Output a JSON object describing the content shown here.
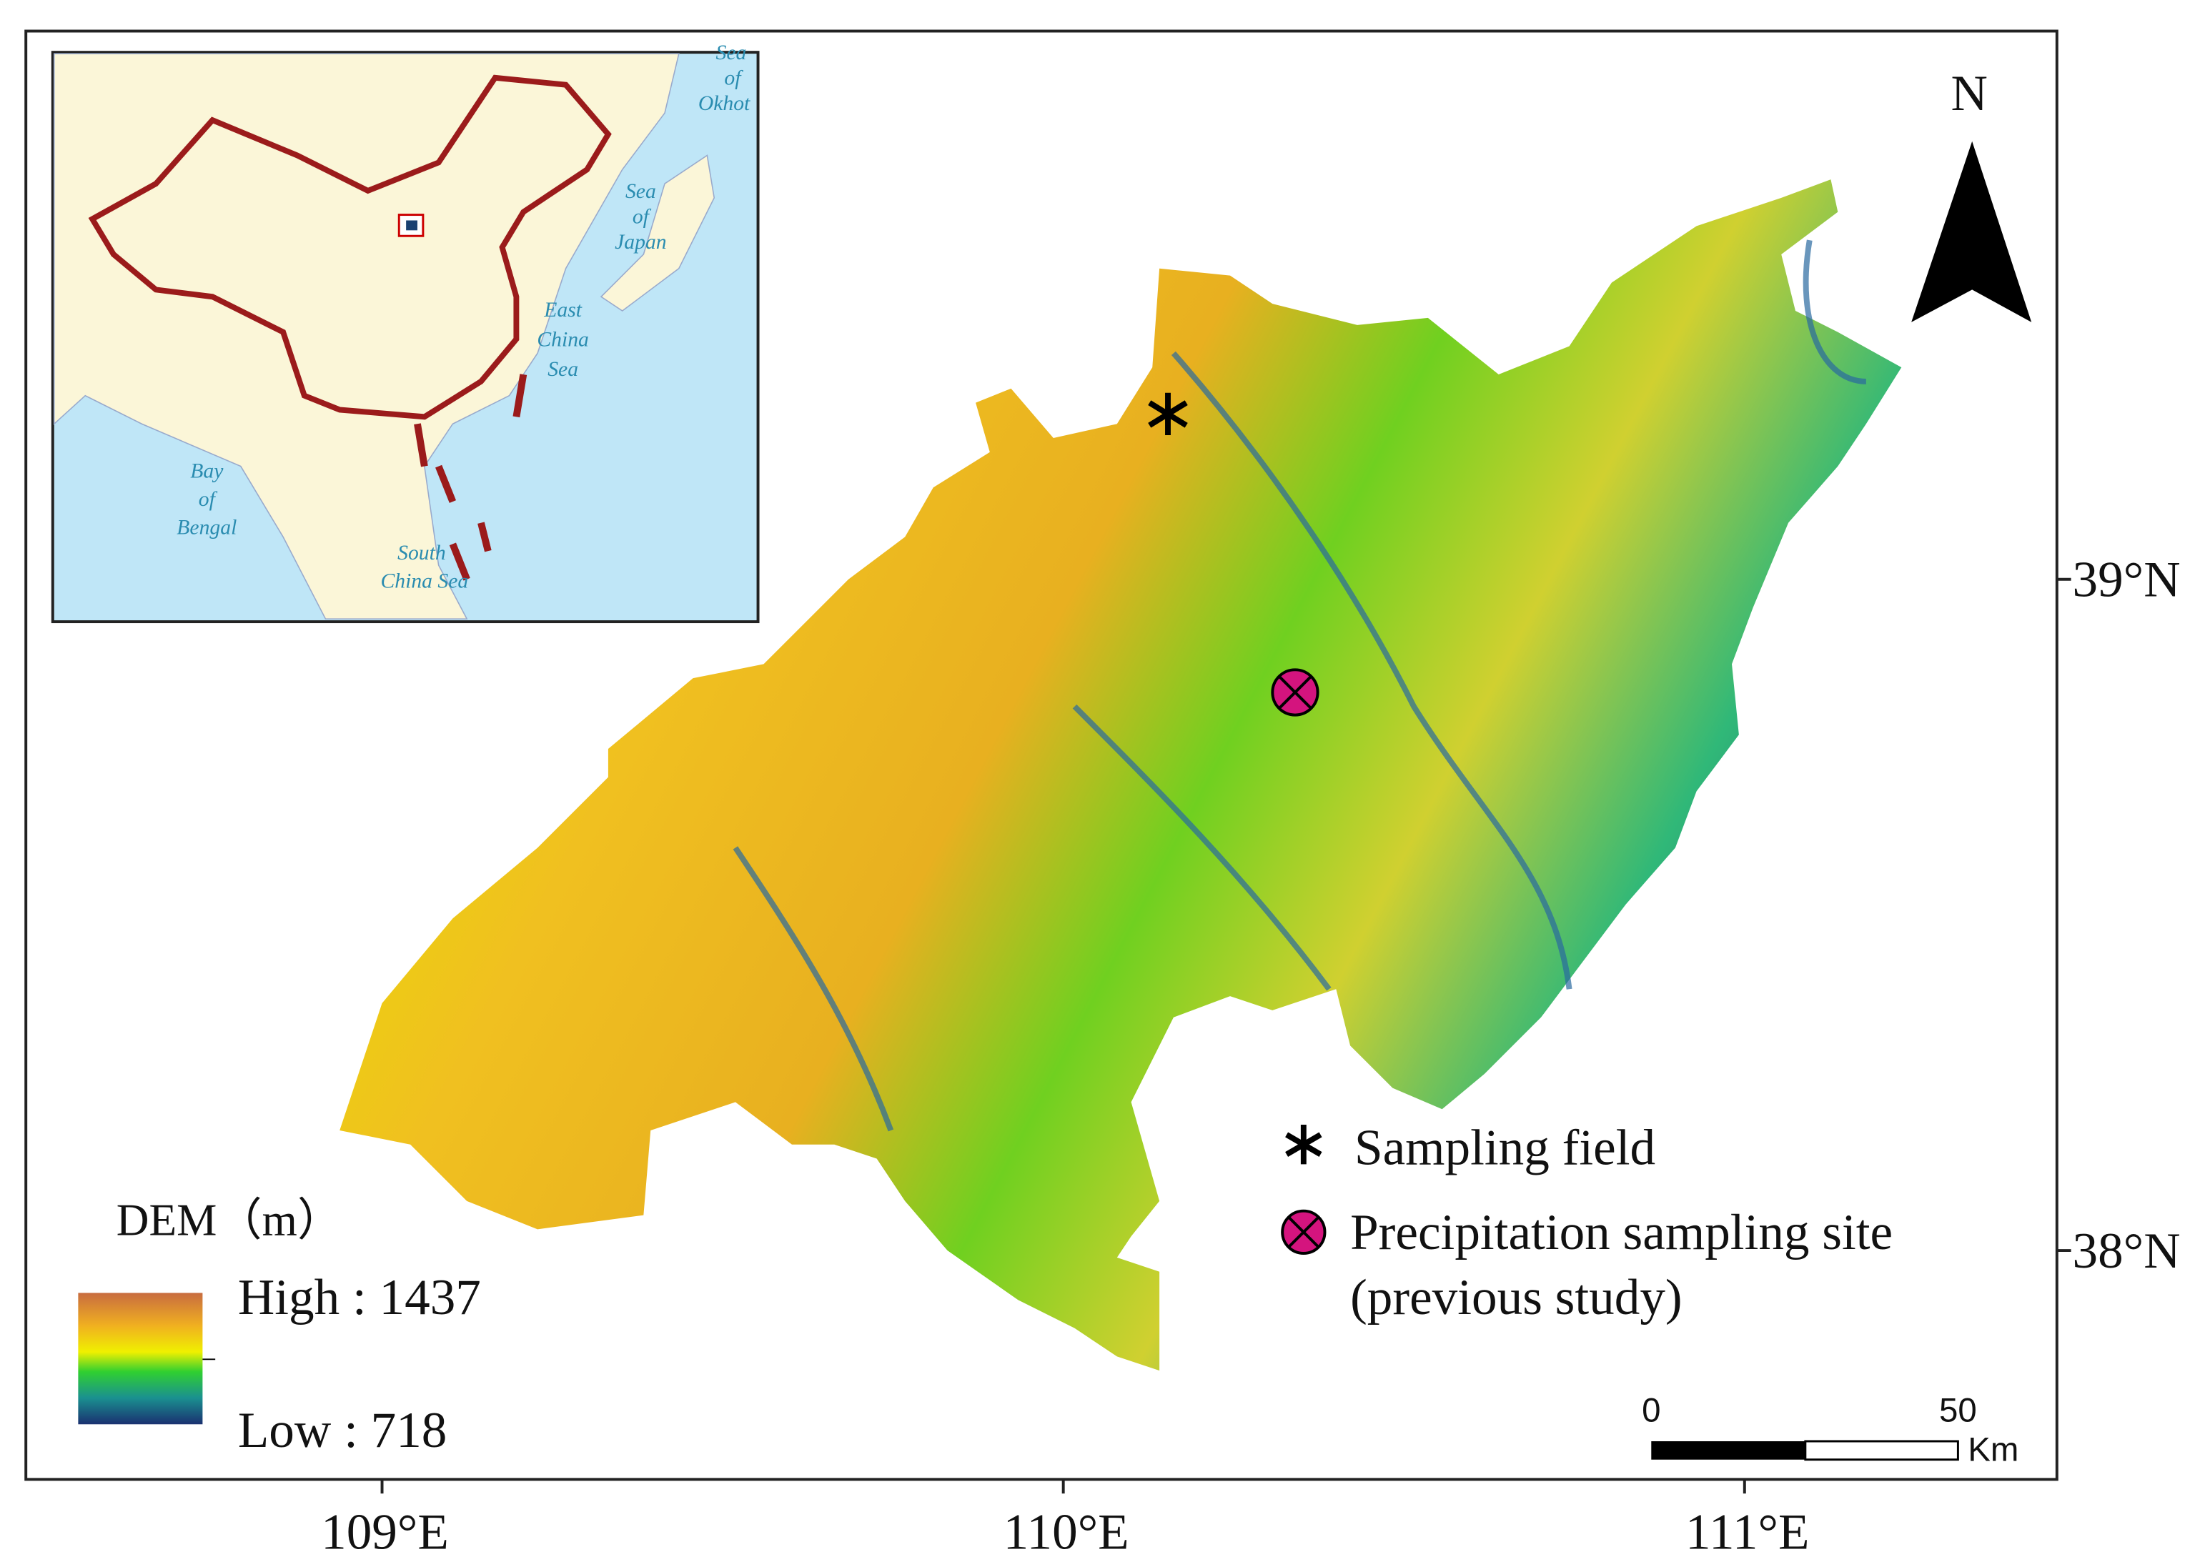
{
  "inset": {
    "labels": {
      "sea_of_okhotsk": [
        "Sea",
        "of",
        "Okhot"
      ],
      "sea_of_japan": [
        "Sea",
        "of",
        "Japan"
      ],
      "east_china_sea": [
        "East",
        "China",
        "Sea"
      ],
      "bay_of_bengal": [
        "Bay",
        "of",
        "Bengal"
      ],
      "south_china_sea": [
        "South",
        "China Sea"
      ]
    }
  },
  "north_arrow": "N",
  "latitude_labels": [
    "39°N",
    "38°N"
  ],
  "longitude_labels": [
    "109°E",
    "110°E",
    "111°E"
  ],
  "legend": {
    "sampling_field": "Sampling field",
    "precipitation_site": [
      "Precipitation sampling site",
      "(previous study)"
    ]
  },
  "dem": {
    "title": "DEM（m）",
    "high": "High : 1437",
    "low": "Low : 718"
  },
  "scale_bar": {
    "start": "0",
    "end": "50",
    "unit": "Km"
  }
}
